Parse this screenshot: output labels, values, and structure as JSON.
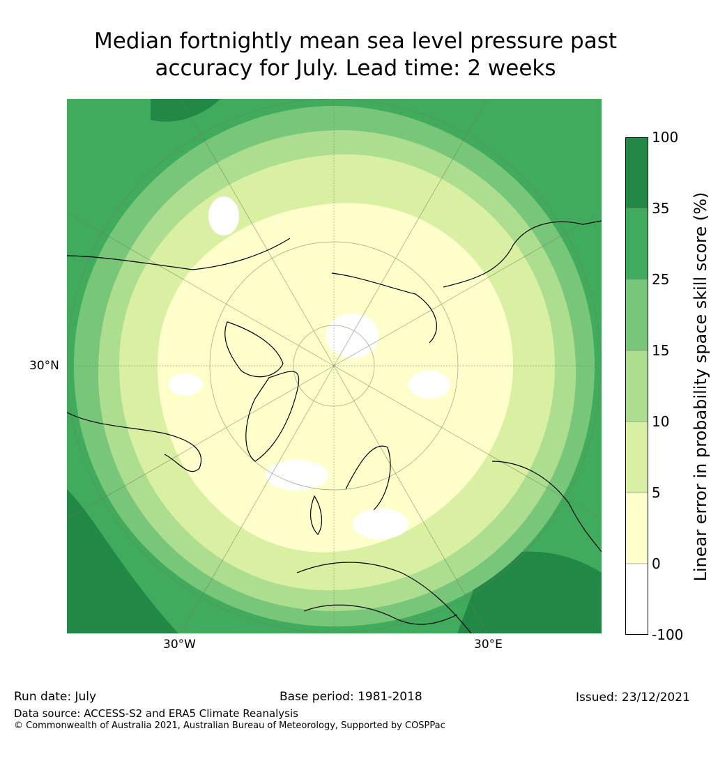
{
  "title": {
    "line1": "Median fortnightly mean sea level pressure past",
    "line2": "accuracy for July. Lead time: 2 weeks"
  },
  "map": {
    "type": "north-polar-stereographic skill map",
    "labels": {
      "lat_30n": "30°N",
      "lon_30w": "30°W",
      "lon_30e": "30°E"
    },
    "graticule": true,
    "coastlines": true
  },
  "colorbar": {
    "title": "Linear error in probability space skill score (%)",
    "ticks": [
      "100",
      "35",
      "25",
      "15",
      "10",
      "5",
      "0",
      "-100"
    ],
    "bins": [
      {
        "range": "35 to 100",
        "color": "#228845"
      },
      {
        "range": "25 to 35",
        "color": "#41ab5d"
      },
      {
        "range": "15 to 25",
        "color": "#78c679"
      },
      {
        "range": "10 to 15",
        "color": "#addd8e"
      },
      {
        "range": "5 to 10",
        "color": "#d9f0a3"
      },
      {
        "range": "0 to 5",
        "color": "#ffffcc"
      },
      {
        "range": "-100 to 0",
        "color": "#ffffff"
      }
    ]
  },
  "footer": {
    "run_date": "Run date: July",
    "base_period": "Base period: 1981-2018",
    "issued": "Issued: 23/12/2021",
    "data_source": "Data source: ACCESS-S2 and ERA5 Climate Reanalysis",
    "copyright": "© Commonwealth of Australia 2021, Australian Bureau of Meteorology, Supported by COSPPac"
  }
}
